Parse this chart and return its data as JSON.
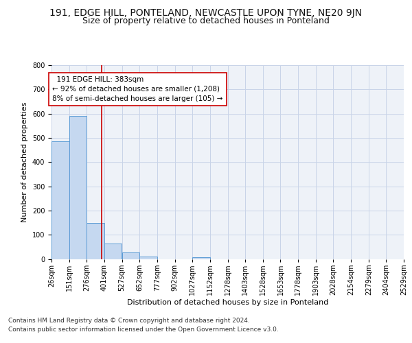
{
  "title": "191, EDGE HILL, PONTELAND, NEWCASTLE UPON TYNE, NE20 9JN",
  "subtitle": "Size of property relative to detached houses in Ponteland",
  "xlabel": "Distribution of detached houses by size in Ponteland",
  "ylabel": "Number of detached properties",
  "bin_edges": [
    26,
    151,
    276,
    401,
    527,
    652,
    777,
    902,
    1027,
    1152,
    1278,
    1403,
    1528,
    1653,
    1778,
    1903,
    2028,
    2154,
    2279,
    2404,
    2529
  ],
  "bin_labels": [
    "26sqm",
    "151sqm",
    "276sqm",
    "401sqm",
    "527sqm",
    "652sqm",
    "777sqm",
    "902sqm",
    "1027sqm",
    "1152sqm",
    "1278sqm",
    "1403sqm",
    "1528sqm",
    "1653sqm",
    "1778sqm",
    "1903sqm",
    "2028sqm",
    "2154sqm",
    "2279sqm",
    "2404sqm",
    "2529sqm"
  ],
  "counts": [
    487,
    590,
    150,
    63,
    28,
    10,
    0,
    0,
    8,
    0,
    0,
    0,
    0,
    0,
    0,
    0,
    0,
    0,
    0,
    0
  ],
  "bar_color": "#c5d8f0",
  "bar_edge_color": "#5b9bd5",
  "red_line_x": 383,
  "property_label": "191 EDGE HILL: 383sqm",
  "pct_smaller": 92,
  "n_smaller": 1208,
  "pct_larger_semi": 8,
  "n_larger_semi": 105,
  "red_line_color": "#cc0000",
  "annotation_edge_color": "#cc0000",
  "ylim": [
    0,
    800
  ],
  "yticks": [
    0,
    100,
    200,
    300,
    400,
    500,
    600,
    700,
    800
  ],
  "grid_color": "#c8d4e8",
  "bg_color": "#eef2f8",
  "footer_line1": "Contains HM Land Registry data © Crown copyright and database right 2024.",
  "footer_line2": "Contains public sector information licensed under the Open Government Licence v3.0.",
  "title_fontsize": 10,
  "subtitle_fontsize": 9,
  "ylabel_fontsize": 8,
  "xlabel_fontsize": 8,
  "tick_fontsize": 7,
  "annot_fontsize": 7.5,
  "footer_fontsize": 6.5
}
